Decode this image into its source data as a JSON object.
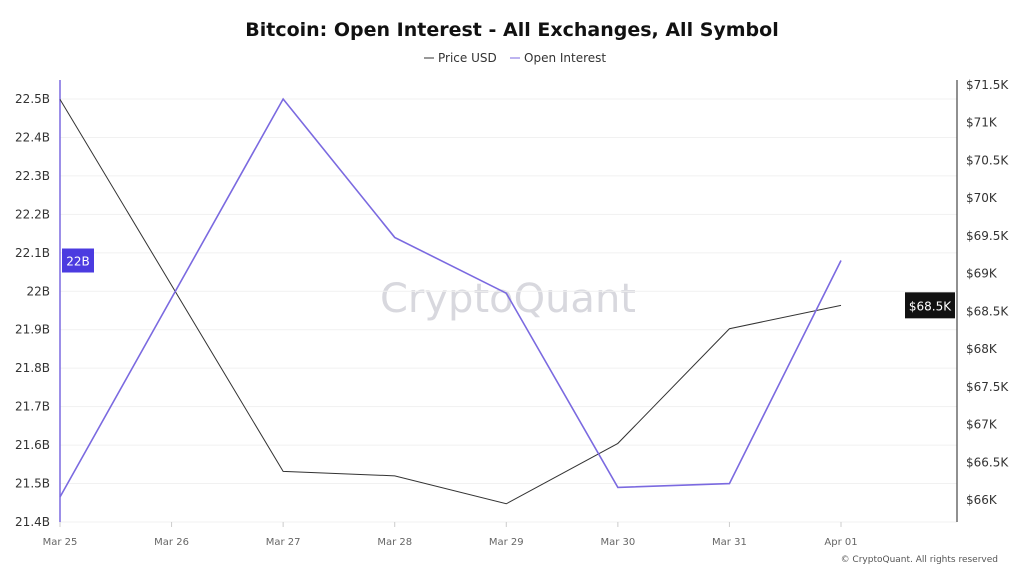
{
  "chart_data": {
    "type": "line",
    "title": "Bitcoin: Open Interest - All Exchanges, All Symbol",
    "categories": [
      "Mar 25",
      "Mar 26",
      "Mar 27",
      "Mar 28",
      "Mar 29",
      "Mar 30",
      "Mar 31",
      "Apr 01"
    ],
    "series": [
      {
        "name": "Price USD",
        "axis": "right",
        "color": "#333333",
        "values": [
          71310,
          null,
          66380,
          66320,
          65950,
          66750,
          68270,
          68580
        ]
      },
      {
        "name": "Open Interest",
        "axis": "left",
        "color": "#7b6ae0",
        "values": [
          21.465,
          null,
          22.5,
          22.14,
          21.995,
          21.49,
          21.5,
          22.08
        ]
      }
    ],
    "left_axis": {
      "ylim": [
        21.4,
        22.5
      ],
      "ticks": [
        "21.4B",
        "21.5B",
        "21.6B",
        "21.7B",
        "21.8B",
        "21.9B",
        "22B",
        "22.1B",
        "22.2B",
        "22.3B",
        "22.4B",
        "22.5B"
      ],
      "tick_values": [
        21.4,
        21.5,
        21.6,
        21.7,
        21.8,
        21.9,
        22.0,
        22.1,
        22.2,
        22.3,
        22.4,
        22.5
      ]
    },
    "right_axis": {
      "ylim": [
        66000,
        71500
      ],
      "ticks": [
        "$66K",
        "$66.5K",
        "$67K",
        "$67.5K",
        "$68K",
        "$68.5K",
        "$69K",
        "$69.5K",
        "$70K",
        "$70.5K",
        "$71K",
        "$71.5K"
      ],
      "tick_values": [
        66000,
        66500,
        67000,
        67500,
        68000,
        68500,
        69000,
        69500,
        70000,
        70500,
        71000,
        71500
      ]
    },
    "highlight_left": {
      "label": "22B",
      "color": "#4b3be0"
    },
    "highlight_right": {
      "label": "$68.5K",
      "color": "#111111"
    },
    "legend_position": "top-center",
    "grid": true
  },
  "watermark": "CryptoQuant",
  "copyright": "© CryptoQuant. All rights reserved"
}
